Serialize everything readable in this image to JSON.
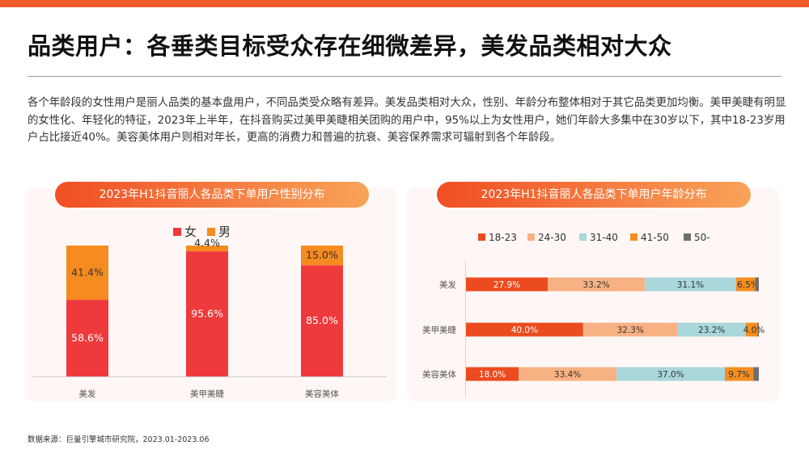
{
  "page": {
    "title": "品类用户：各垂类目标受众存在细微差异，美发品类相对大众",
    "paragraph": "各个年龄段的女性用户是丽人品类的基本盘用户，不同品类受众略有差异。美发品类相对大众，性别、年龄分布整体相对于其它品类更加均衡。美甲美睫有明显的女性化、年轻化的特征，2023年上半年，在抖音购买过美甲美睫相关团购的用户中，95%以上为女性用户，她们年龄大多集中在30岁以下，其中18-23岁用户占比接近40%。美容美体用户则相对年长，更高的消费力和普遍的抗衰、美容保养需求可辐射到各个年龄段。",
    "source": "数据来源：巨量引擎城市研究院，2023.01-2023.06"
  },
  "colors": {
    "accent": "#f05a28",
    "female": "#ee3a3c",
    "male": "#f68b1f",
    "age_18_23": "#ec4b1f",
    "age_24_30": "#f8b183",
    "age_31_40": "#a9d7db",
    "age_41_50": "#f58e1f",
    "age_50": "#6e6e6e"
  },
  "chart_data": [
    {
      "type": "bar",
      "stacked": true,
      "orientation": "vertical",
      "title": "2023年H1抖音丽人各品类下单用户性别分布",
      "categories": [
        "美发",
        "美甲美睫",
        "美容美体"
      ],
      "series": [
        {
          "name": "女",
          "values": [
            58.6,
            95.6,
            85.0
          ],
          "labels": [
            "58.6%",
            "95.6%",
            "85.0%"
          ]
        },
        {
          "name": "男",
          "values": [
            41.4,
            4.4,
            15.0
          ],
          "labels": [
            "41.4%",
            "4.4%",
            "15.0%"
          ]
        }
      ],
      "unit": "%",
      "ylim": [
        0,
        100
      ],
      "legend": "top-center"
    },
    {
      "type": "bar",
      "stacked": true,
      "orientation": "horizontal",
      "title": "2023年H1抖音丽人各品类下单用户年龄分布",
      "categories": [
        "美发",
        "美甲美睫",
        "美容美体"
      ],
      "series": [
        {
          "name": "18-23",
          "values": [
            27.9,
            40.0,
            18.0
          ],
          "labels": [
            "27.9%",
            "40.0%",
            "18.0%"
          ]
        },
        {
          "name": "24-30",
          "values": [
            33.2,
            32.3,
            33.4
          ],
          "labels": [
            "33.2%",
            "32.3%",
            "33.4%"
          ]
        },
        {
          "name": "31-40",
          "values": [
            31.1,
            23.2,
            37.0
          ],
          "labels": [
            "31.1%",
            "23.2%",
            "37.0%"
          ]
        },
        {
          "name": "41-50",
          "values": [
            6.5,
            4.0,
            9.7
          ],
          "labels": [
            "6.5%",
            "4.0%",
            "9.7%"
          ]
        },
        {
          "name": "50-",
          "values": [
            1.3,
            0.5,
            1.9
          ],
          "labels": [
            "",
            "",
            ""
          ]
        }
      ],
      "unit": "%",
      "xlim": [
        0,
        100
      ],
      "legend": "top"
    }
  ]
}
